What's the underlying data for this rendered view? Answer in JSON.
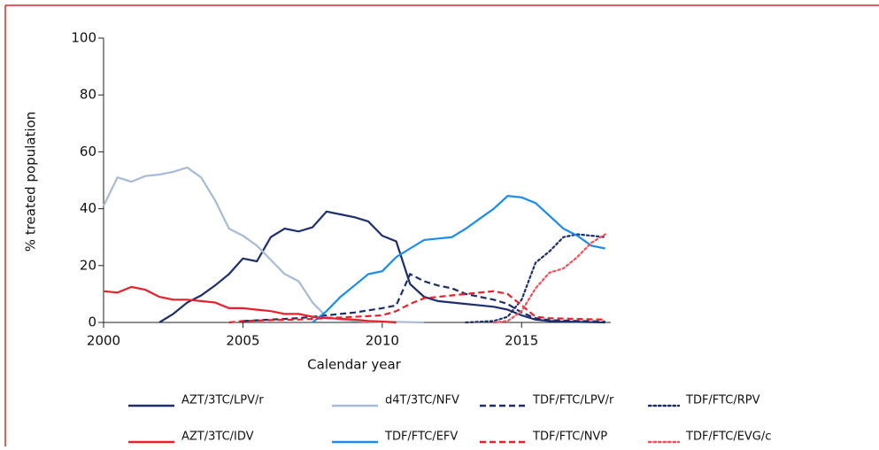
{
  "chart_data": {
    "type": "line",
    "x_label": "Calendar year",
    "y_label": "% treated population",
    "xlim": [
      2000,
      2018.2
    ],
    "xticks": [
      2000,
      2005,
      2010,
      2015
    ],
    "ylim": [
      0,
      100
    ],
    "yticks": [
      0,
      20,
      40,
      60,
      80,
      100
    ],
    "series": [
      {
        "name": "AZT/3TC/LPV/r",
        "color": "#1c2e6b",
        "dash": "solid",
        "x": [
          2002,
          2002.5,
          2003,
          2003.5,
          2004,
          2004.5,
          2005,
          2005.5,
          2006,
          2006.5,
          2007,
          2007.5,
          2008,
          2008.5,
          2009,
          2009.5,
          2010,
          2010.5,
          2011,
          2011.5,
          2012,
          2012.5,
          2013,
          2013.5,
          2014,
          2014.5,
          2015,
          2015.5,
          2016,
          2016.5,
          2017,
          2017.5,
          2018
        ],
        "values": [
          0,
          3,
          7,
          9.5,
          13,
          17,
          22.5,
          21.5,
          30,
          33,
          32,
          33.5,
          39,
          38,
          37,
          35.5,
          30.5,
          28.5,
          13.5,
          9,
          7.5,
          7,
          6.5,
          6,
          5.5,
          4.5,
          2.5,
          1,
          0.5,
          0.3,
          0.2,
          0.1,
          0
        ]
      },
      {
        "name": "d4T/3TC/NFV",
        "color": "#a8bbd4",
        "dash": "solid",
        "x": [
          2000,
          2000.5,
          2001,
          2001.5,
          2002,
          2002.5,
          2003,
          2003.5,
          2004,
          2004.5,
          2005,
          2005.5,
          2006,
          2006.5,
          2007,
          2007.5,
          2008,
          2008.5,
          2009,
          2009.5,
          2010,
          2010.5,
          2011,
          2011.5
        ],
        "values": [
          41,
          51,
          49.5,
          51.5,
          52,
          53,
          54.5,
          51,
          43,
          33,
          30.5,
          27,
          22,
          17,
          14.5,
          7,
          2,
          1,
          0.5,
          0.3,
          0.2,
          0.2,
          0.1,
          0
        ]
      },
      {
        "name": "TDF/FTC/LPV/r",
        "color": "#1c2e6b",
        "dash": "dashed",
        "x": [
          2005,
          2006,
          2007,
          2008,
          2009,
          2010,
          2010.5,
          2011,
          2011.5,
          2012,
          2012.5,
          2013,
          2013.5,
          2014,
          2014.5,
          2015,
          2015.5,
          2016,
          2017,
          2018
        ],
        "values": [
          0.5,
          1,
          1.5,
          2.5,
          3.5,
          5,
          6,
          17,
          14.5,
          13,
          12,
          10,
          9,
          8,
          6.5,
          3.5,
          1.5,
          0.8,
          0.5,
          0.3
        ]
      },
      {
        "name": "TDF/FTC/RPV",
        "color": "#1c2e6b",
        "dash": "dotted",
        "x": [
          2013,
          2014,
          2014.5,
          2015,
          2015.5,
          2016,
          2016.5,
          2017,
          2017.5,
          2018
        ],
        "values": [
          0,
          0.5,
          2,
          8,
          21,
          25,
          30,
          31,
          30.5,
          30
        ]
      },
      {
        "name": "AZT/3TC/IDV",
        "color": "#e8202a",
        "dash": "solid",
        "x": [
          2000,
          2000.5,
          2001,
          2001.5,
          2002,
          2002.5,
          2003,
          2003.5,
          2004,
          2004.5,
          2005,
          2005.5,
          2006,
          2006.5,
          2007,
          2007.5,
          2008,
          2008.5,
          2009,
          2009.5,
          2010,
          2010.5
        ],
        "values": [
          11,
          10.5,
          12.5,
          11.5,
          9,
          8,
          8,
          7.5,
          7,
          5,
          5,
          4.5,
          4,
          3,
          3,
          2,
          1.5,
          1.3,
          1,
          0.5,
          0.3,
          0
        ]
      },
      {
        "name": "TDF/FTC/EFV",
        "color": "#1a8cec",
        "dash": "solid",
        "x": [
          2007.5,
          2008,
          2008.5,
          2009,
          2009.5,
          2010,
          2010.5,
          2011,
          2011.5,
          2012,
          2012.5,
          2013,
          2013.5,
          2014,
          2014.5,
          2015,
          2015.5,
          2016,
          2016.5,
          2017,
          2017.5,
          2018
        ],
        "values": [
          0,
          4,
          9,
          13,
          17,
          18,
          23,
          26,
          29,
          29.5,
          30,
          33,
          36.5,
          40,
          44.5,
          44,
          42,
          37.5,
          33,
          30.5,
          27,
          26
        ]
      },
      {
        "name": "TDF/FTC/NVP",
        "color": "#e8202a",
        "dash": "dashed",
        "x": [
          2004.5,
          2005,
          2006,
          2007,
          2008,
          2009,
          2010,
          2010.5,
          2011,
          2011.5,
          2012,
          2012.5,
          2013,
          2013.5,
          2014,
          2014.5,
          2015,
          2015.5,
          2016,
          2017,
          2018
        ],
        "values": [
          0,
          0.5,
          0.8,
          1,
          1.5,
          2,
          2.5,
          4,
          6.5,
          8.5,
          9,
          9.5,
          10,
          10.5,
          11,
          10,
          6,
          2,
          1.5,
          1.2,
          1
        ]
      },
      {
        "name": "TDF/FTC/EVG/c",
        "color": "#f0505a",
        "dash": "dotted",
        "x": [
          2014,
          2014.5,
          2015,
          2015.5,
          2016,
          2016.5,
          2017,
          2017.5,
          2018
        ],
        "values": [
          0,
          0.5,
          4,
          12,
          17.5,
          19,
          23,
          28,
          31
        ]
      }
    ]
  }
}
